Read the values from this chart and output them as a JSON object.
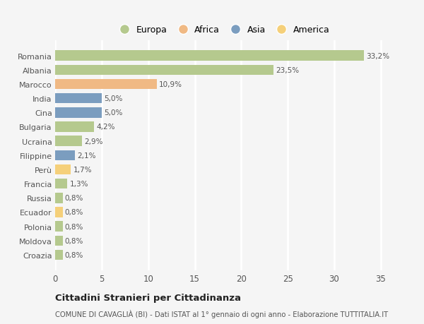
{
  "countries": [
    "Romania",
    "Albania",
    "Marocco",
    "India",
    "Cina",
    "Bulgaria",
    "Ucraina",
    "Filippine",
    "Perù",
    "Francia",
    "Russia",
    "Ecuador",
    "Polonia",
    "Moldova",
    "Croazia"
  ],
  "values": [
    33.2,
    23.5,
    10.9,
    5.0,
    5.0,
    4.2,
    2.9,
    2.1,
    1.7,
    1.3,
    0.8,
    0.8,
    0.8,
    0.8,
    0.8
  ],
  "labels": [
    "33,2%",
    "23,5%",
    "10,9%",
    "5,0%",
    "5,0%",
    "4,2%",
    "2,9%",
    "2,1%",
    "1,7%",
    "1,3%",
    "0,8%",
    "0,8%",
    "0,8%",
    "0,8%",
    "0,8%"
  ],
  "colors": [
    "#b5c98e",
    "#b5c98e",
    "#f0b984",
    "#7b9dbf",
    "#7b9dbf",
    "#b5c98e",
    "#b5c98e",
    "#7b9dbf",
    "#f5d07a",
    "#b5c98e",
    "#b5c98e",
    "#f5d07a",
    "#b5c98e",
    "#b5c98e",
    "#b5c98e"
  ],
  "legend_items": [
    {
      "label": "Europa",
      "color": "#b5c98e"
    },
    {
      "label": "Africa",
      "color": "#f0b984"
    },
    {
      "label": "Asia",
      "color": "#7b9dbf"
    },
    {
      "label": "America",
      "color": "#f5d07a"
    }
  ],
  "title": "Cittadini Stranieri per Cittadinanza",
  "subtitle": "COMUNE DI CAVAGLIÀ (BI) - Dati ISTAT al 1° gennaio di ogni anno - Elaborazione TUTTITALIA.IT",
  "xlim": [
    0,
    36
  ],
  "xticks": [
    0,
    5,
    10,
    15,
    20,
    25,
    30,
    35
  ],
  "bg_color": "#f5f5f5",
  "grid_color": "#ffffff",
  "bar_height": 0.72
}
